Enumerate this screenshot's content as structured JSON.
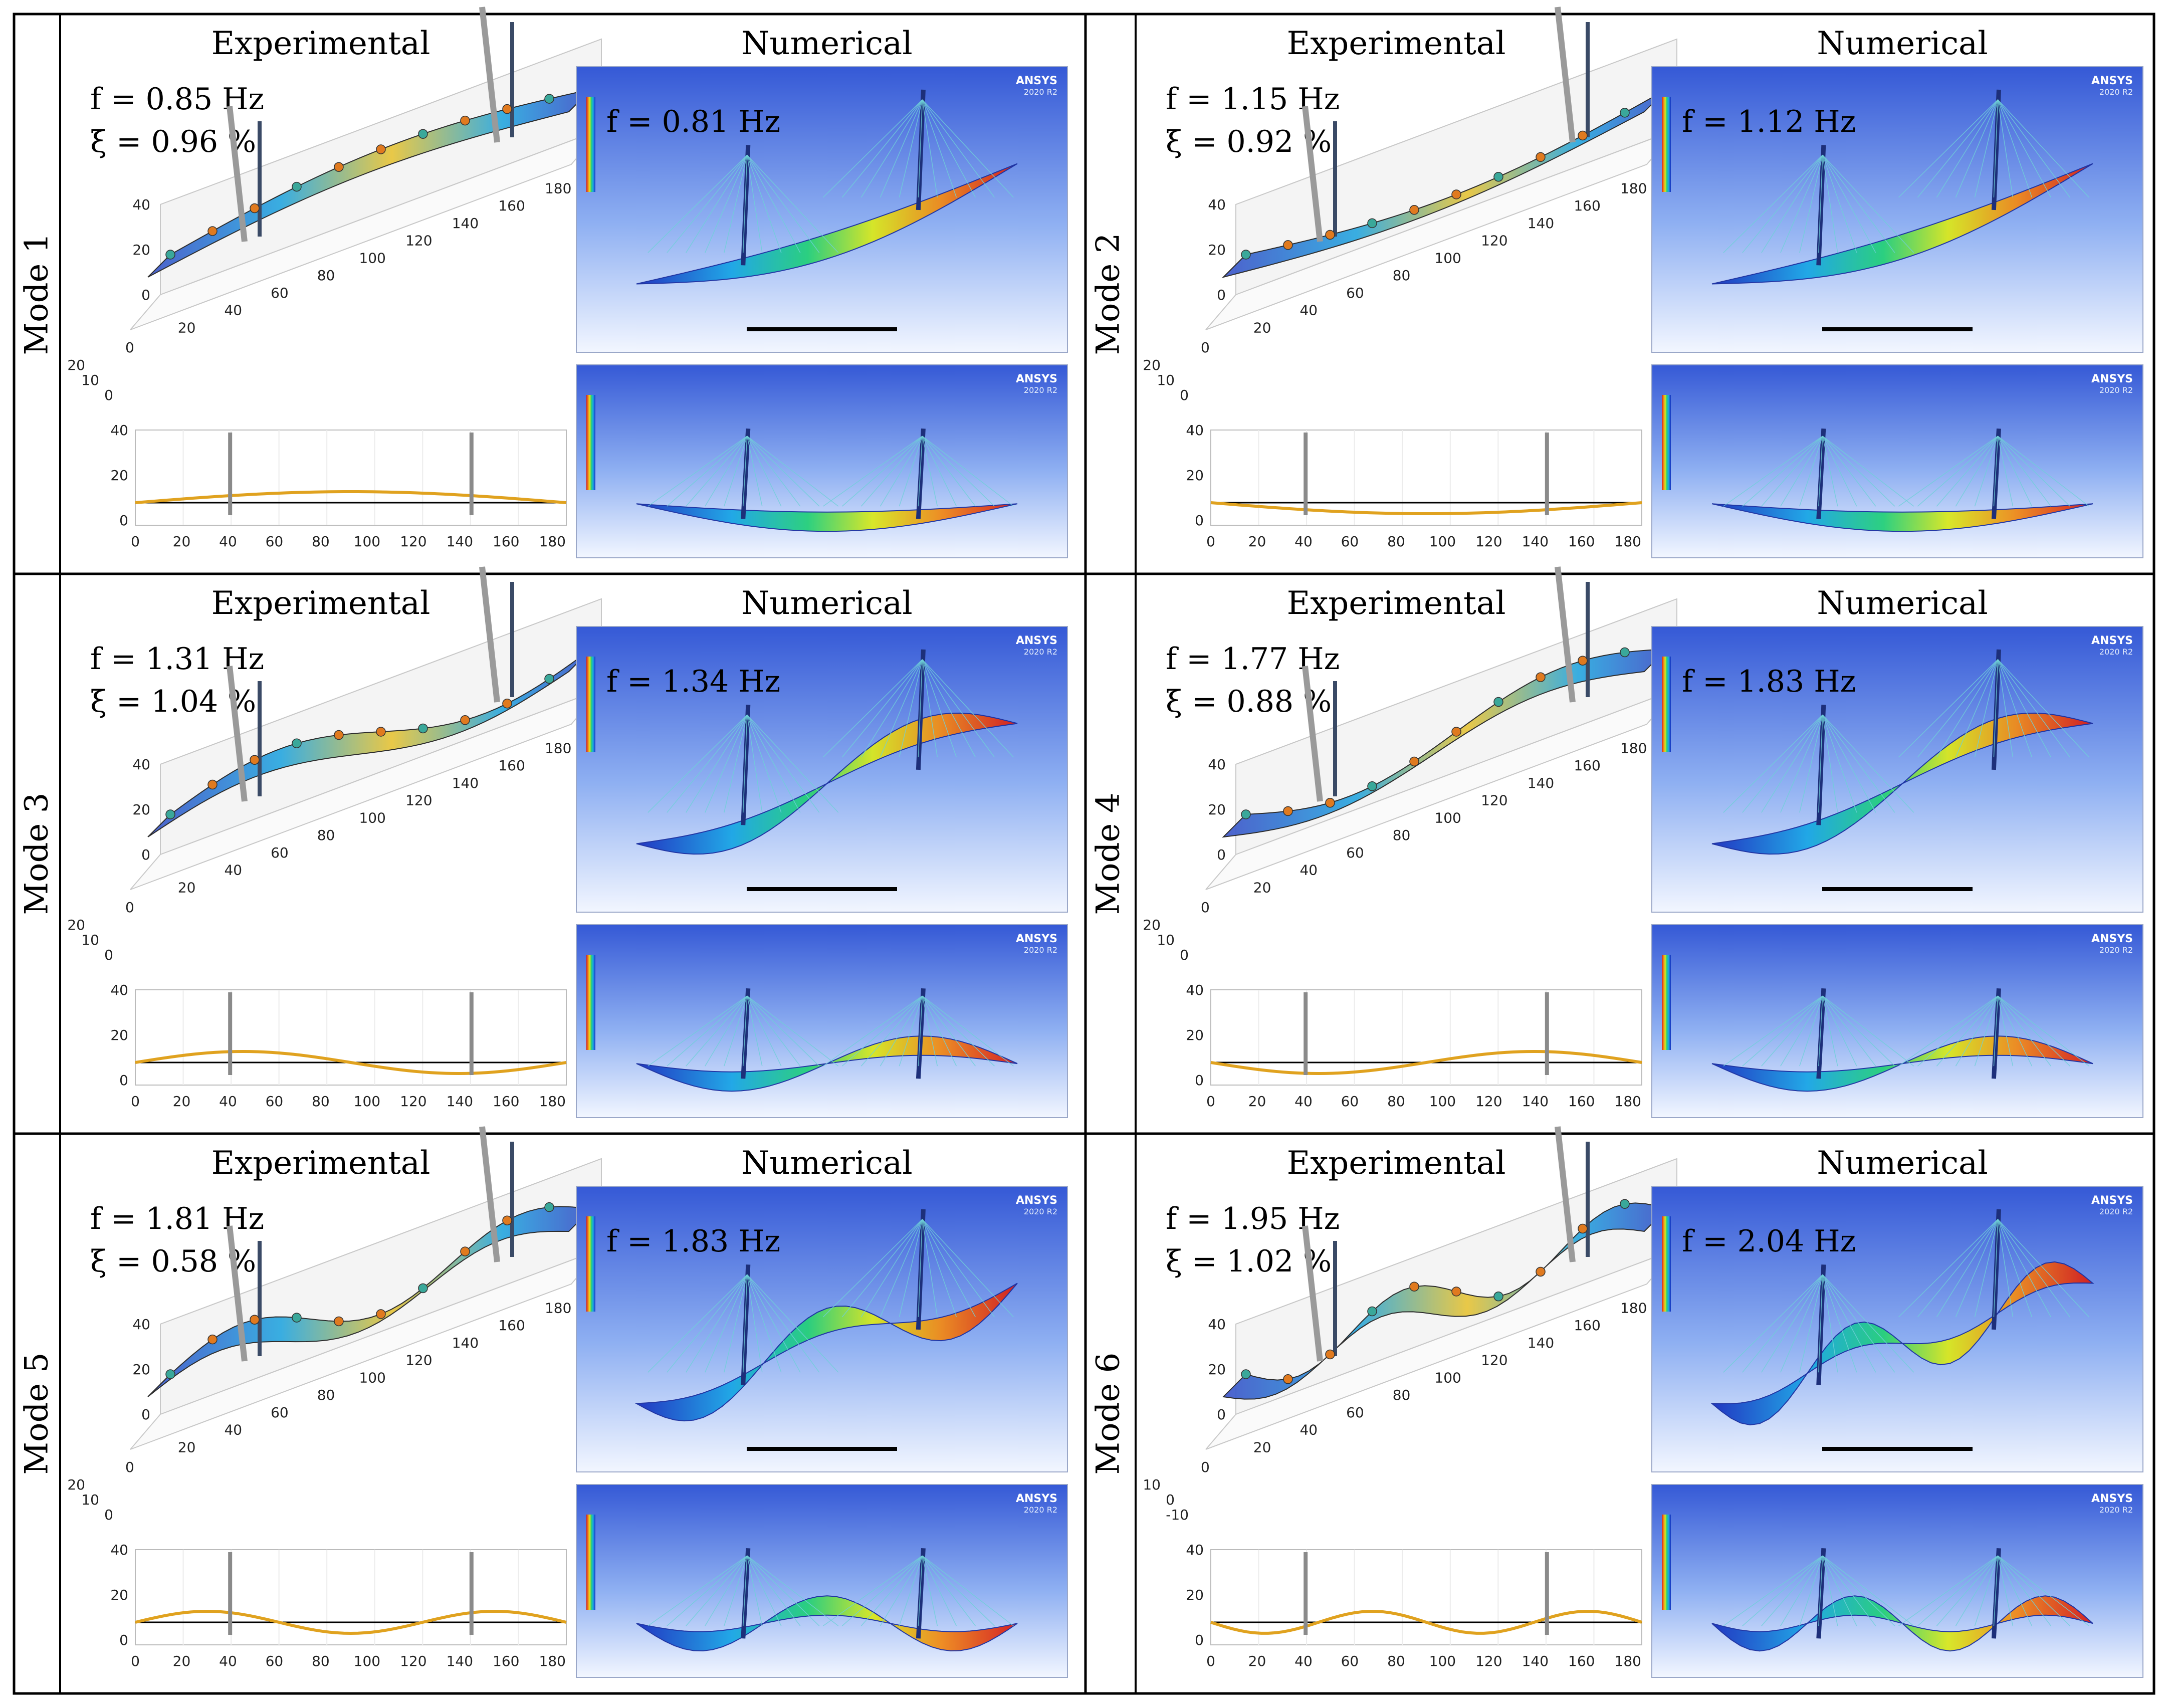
{
  "figure": {
    "column_headers": {
      "experimental": "Experimental",
      "numerical": "Numerical"
    },
    "software_label": "ANSYS",
    "software_version": "2020 R2",
    "axis_ticks": {
      "x3d": [
        "20",
        "40",
        "60",
        "80",
        "100",
        "120",
        "140",
        "160",
        "180"
      ],
      "x3d_start": "0",
      "z3d": [
        "40",
        "20",
        "0"
      ],
      "y3d": [
        "20",
        "10",
        "0"
      ],
      "y3d_mode2": [
        "20",
        "10",
        "0"
      ],
      "y3d_mode6": [
        "10",
        "0",
        "-10"
      ],
      "x2d": [
        "0",
        "20",
        "40",
        "60",
        "80",
        "100",
        "120",
        "140",
        "160",
        "180"
      ],
      "y2d": [
        "40",
        "20",
        "0"
      ]
    },
    "modes": [
      {
        "label": "Mode 1",
        "exp_f": "f = 0.85 Hz",
        "exp_xi": "ξ = 0.96 %",
        "num_f": "f = 0.81 Hz",
        "half_waves": 1
      },
      {
        "label": "Mode 2",
        "exp_f": "f = 1.15 Hz",
        "exp_xi": "ξ = 0.92 %",
        "num_f": "f = 1.12 Hz",
        "half_waves": 1
      },
      {
        "label": "Mode 3",
        "exp_f": "f = 1.31 Hz",
        "exp_xi": "ξ = 1.04 %",
        "num_f": "f = 1.34 Hz",
        "half_waves": 2
      },
      {
        "label": "Mode 4",
        "exp_f": "f = 1.77 Hz",
        "exp_xi": "ξ = 0.88 %",
        "num_f": "f = 1.83 Hz",
        "half_waves": 2
      },
      {
        "label": "Mode 5",
        "exp_f": "f = 1.81 Hz",
        "exp_xi": "ξ = 0.58 %",
        "num_f": "f = 1.83 Hz",
        "half_waves": 3
      },
      {
        "label": "Mode 6",
        "exp_f": "f = 1.95 Hz",
        "exp_xi": "ξ = 1.02 %",
        "num_f": "f = 2.04 Hz",
        "half_waves": 4
      }
    ],
    "colors": {
      "border": "#000000",
      "ansys_bg_top": "#3b63d9",
      "ansys_bg_bottom": "#e8f0ff",
      "deck_blue": "#2a3fb8",
      "tower": "#8a8a8a",
      "sensor": "#e07a1f"
    }
  }
}
